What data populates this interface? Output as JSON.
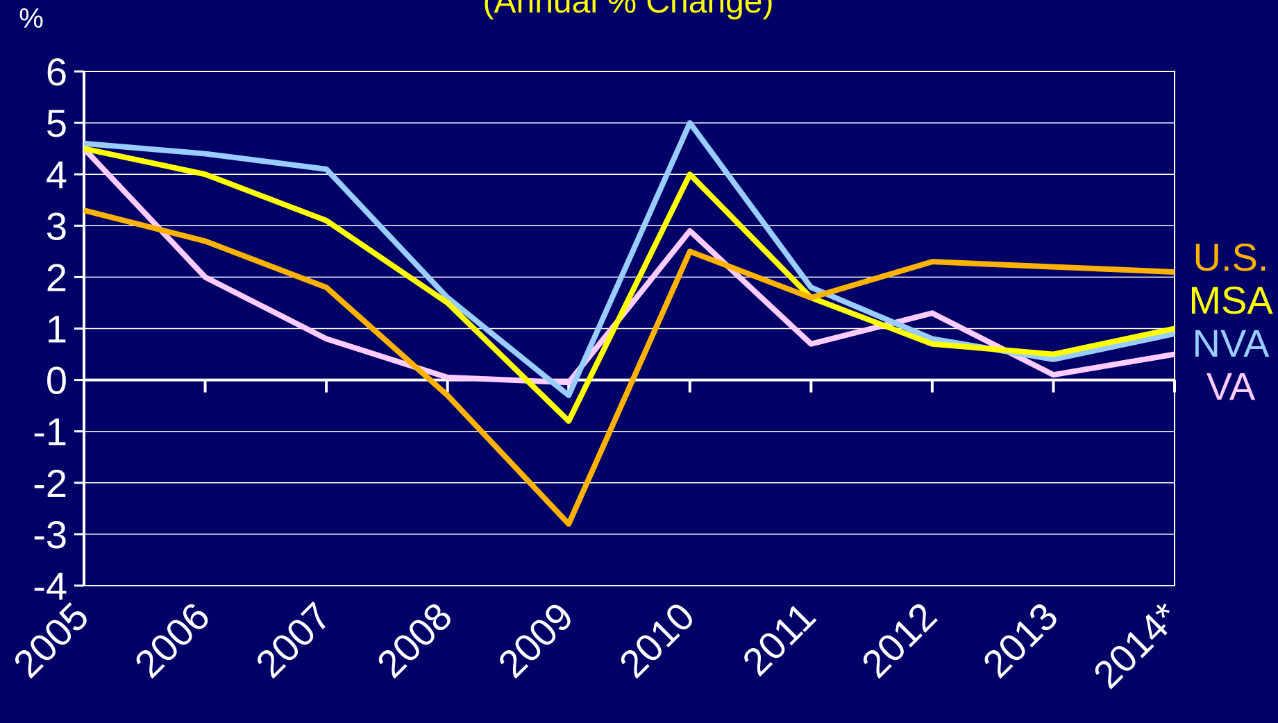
{
  "chart_data": {
    "type": "line",
    "subtitle": "(Annual % Change)",
    "y_label": "%",
    "categories": [
      "2005",
      "2006",
      "2007",
      "2008",
      "2009",
      "2010",
      "2011",
      "2012",
      "2013",
      "2014*"
    ],
    "series": [
      {
        "name": "U.S.",
        "color": "#FFB300",
        "values": [
          3.3,
          2.7,
          1.8,
          -0.3,
          -2.8,
          2.5,
          1.6,
          2.3,
          2.2,
          2.1
        ]
      },
      {
        "name": "MSA",
        "color": "#FFFF00",
        "values": [
          4.5,
          4.0,
          3.1,
          1.5,
          -0.8,
          4.0,
          1.6,
          0.7,
          0.5,
          1.0
        ]
      },
      {
        "name": "NVA",
        "color": "#99CCFF",
        "values": [
          4.6,
          4.4,
          4.1,
          1.6,
          -0.3,
          5.0,
          1.8,
          0.8,
          0.4,
          0.9
        ]
      },
      {
        "name": "VA",
        "color": "#FFCCFF",
        "values": [
          4.5,
          2.0,
          0.8,
          0.05,
          -0.05,
          2.9,
          0.7,
          1.3,
          0.1,
          0.5
        ]
      }
    ],
    "ylim": [
      -4,
      6
    ],
    "yticks": [
      -4,
      -3,
      -2,
      -1,
      0,
      1,
      2,
      3,
      4,
      5,
      6
    ],
    "grid": true,
    "background": "#000066",
    "title_color": "#FFFF00",
    "text_color": "#FFFFFF"
  }
}
